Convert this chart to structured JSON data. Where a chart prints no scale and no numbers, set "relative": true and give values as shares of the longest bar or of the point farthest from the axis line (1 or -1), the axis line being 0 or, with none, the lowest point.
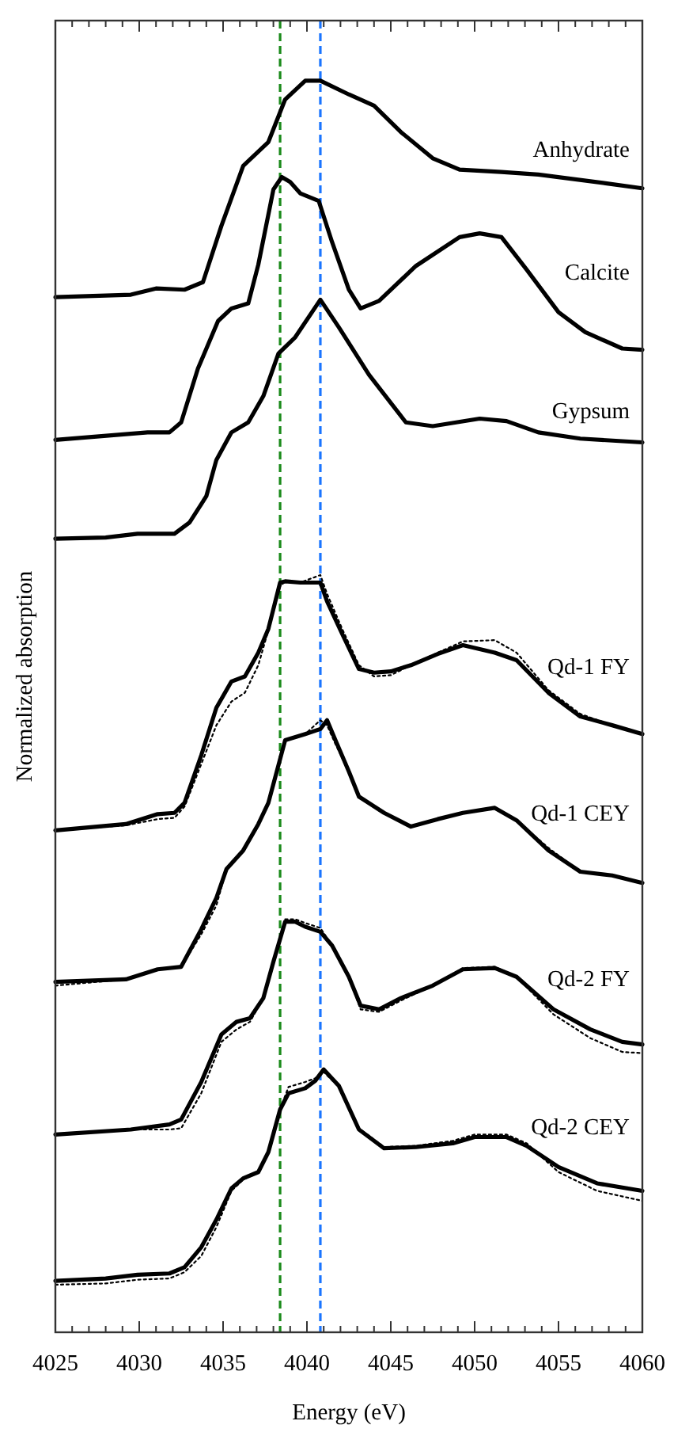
{
  "chart_data": {
    "type": "line",
    "relative": true,
    "xlabel": "Energy (eV)",
    "ylabel": "Normalized absorption",
    "grid": false,
    "xlim": [
      4025,
      4060
    ],
    "xticks": [
      4025,
      {
        "value": 4026,
        "label": null
      },
      {
        "value": 4027,
        "label": null
      },
      {
        "value": 4028,
        "label": null
      },
      {
        "value": 4029,
        "label": null
      },
      4030,
      {
        "value": 4031,
        "label": null
      },
      {
        "value": 4032,
        "label": null
      },
      {
        "value": 4033,
        "label": null
      },
      {
        "value": 4034,
        "label": null
      },
      4035,
      {
        "value": 4036,
        "label": null
      },
      {
        "value": 4037,
        "label": null
      },
      {
        "value": 4038,
        "label": null
      },
      {
        "value": 4039,
        "label": null
      },
      4040,
      {
        "value": 4041,
        "label": null
      },
      {
        "value": 4042,
        "label": null
      },
      {
        "value": 4043,
        "label": null
      },
      {
        "value": 4044,
        "label": null
      },
      4045,
      {
        "value": 4046,
        "label": null
      },
      {
        "value": 4047,
        "label": null
      },
      {
        "value": 4048,
        "label": null
      },
      {
        "value": 4049,
        "label": null
      },
      4050,
      {
        "value": 4051,
        "label": null
      },
      {
        "value": 4052,
        "label": null
      },
      {
        "value": 4053,
        "label": null
      },
      {
        "value": 4054,
        "label": null
      },
      4055,
      {
        "value": 4056,
        "label": null
      },
      {
        "value": 4057,
        "label": null
      },
      {
        "value": 4058,
        "label": null
      },
      {
        "value": 4059,
        "label": null
      },
      4060
    ],
    "ref_lines": [
      {
        "axis": "x",
        "value": 4038.4,
        "color": "#1a8a1a",
        "line_style": "dashed"
      },
      {
        "axis": "x",
        "value": 4040.8,
        "color": "#1a75ff",
        "line_style": "dashed"
      }
    ],
    "series": [
      {
        "name": "Anhydrate",
        "color": "#000000",
        "line_style": "solid",
        "x": [
          4025,
          4029.5,
          4031,
          4032.7,
          4033.8,
          4034.9,
          4036.2,
          4037.7,
          4038.7,
          4039.9,
          4040.8,
          4042.5,
          4044.0,
          4045.6,
          4047.5,
          4049.1,
          4051.6,
          4053.8,
          4057.8,
          4060
        ],
        "values": [
          0.827,
          0.829,
          0.834,
          0.833,
          0.839,
          0.884,
          0.932,
          0.951,
          0.985,
          1,
          1,
          0.989,
          0.98,
          0.959,
          0.938,
          0.929,
          0.927,
          0.925,
          0.918,
          0.914
        ]
      },
      {
        "name": "Calcite",
        "color": "#000000",
        "line_style": "solid",
        "x": [
          4025,
          4030.5,
          4031.8,
          4032.5,
          4033.5,
          4034.7,
          4035.5,
          4036.5,
          4037.1,
          4038.0,
          4038.5,
          4039.0,
          4039.6,
          4040.7,
          4041.5,
          4042.5,
          4043.2,
          4044.3,
          4046.5,
          4049.1,
          4050.3,
          4051.6,
          4053.1,
          4055.0,
          4056.6,
          4058.8,
          4060
        ],
        "values": [
          0.713,
          0.719,
          0.719,
          0.727,
          0.77,
          0.808,
          0.818,
          0.822,
          0.853,
          0.913,
          0.923,
          0.919,
          0.91,
          0.904,
          0.871,
          0.833,
          0.818,
          0.824,
          0.852,
          0.875,
          0.878,
          0.875,
          0.849,
          0.815,
          0.799,
          0.786,
          0.785
        ]
      },
      {
        "name": "Gypsum",
        "color": "#000000",
        "line_style": "solid",
        "x": [
          4025,
          4028,
          4029.9,
          4032.1,
          4033,
          4034,
          4034.6,
          4035.5,
          4036.5,
          4037.4,
          4038.3,
          4039.3,
          4040.8,
          4041.9,
          4043.7,
          4045.9,
          4047.5,
          4050.3,
          4051.9,
          4053.8,
          4056.3,
          4060
        ],
        "values": [
          0.634,
          0.635,
          0.638,
          0.638,
          0.647,
          0.668,
          0.697,
          0.719,
          0.727,
          0.748,
          0.782,
          0.795,
          0.825,
          0.803,
          0.765,
          0.727,
          0.724,
          0.73,
          0.728,
          0.719,
          0.714,
          0.711
        ]
      },
      {
        "name": "Qd-1 FY",
        "color": "#000000",
        "line_style": "solid",
        "x": [
          4025,
          4029.2,
          4031.1,
          4032.1,
          4032.7,
          4033.7,
          4034.6,
          4035.5,
          4036.3,
          4037.1,
          4037.7,
          4038.4,
          4038.7,
          4039.6,
          4040.8,
          4041.2,
          4042.1,
          4043.1,
          4044.0,
          4045.0,
          4046.2,
          4047.8,
          4049.3,
          4051.2,
          4052.5,
          4054.4,
          4056.3,
          4058.2,
          4060
        ],
        "values": [
          0.401,
          0.406,
          0.414,
          0.415,
          0.423,
          0.461,
          0.499,
          0.52,
          0.524,
          0.543,
          0.562,
          0.599,
          0.6,
          0.599,
          0.599,
          0.584,
          0.558,
          0.53,
          0.527,
          0.528,
          0.533,
          0.542,
          0.549,
          0.543,
          0.537,
          0.511,
          0.492,
          0.485,
          0.478
        ]
      },
      {
        "color": "#000000",
        "line_style": "dotted",
        "x": [
          4025,
          4029.2,
          4031.1,
          4032.1,
          4032.7,
          4033.7,
          4034.6,
          4035.5,
          4036.3,
          4037.1,
          4037.7,
          4038.4,
          4038.7,
          4039.6,
          4040.8,
          4041.2,
          4042.1,
          4043.1,
          4044.0,
          4045.0,
          4046.2,
          4047.8,
          4049.3,
          4051.2,
          4052.5,
          4054.4,
          4056.3,
          4058.2,
          4060
        ],
        "values": [
          0.401,
          0.405,
          0.41,
          0.411,
          0.42,
          0.454,
          0.485,
          0.504,
          0.511,
          0.533,
          0.561,
          0.596,
          0.6,
          0.599,
          0.605,
          0.59,
          0.562,
          0.533,
          0.524,
          0.525,
          0.533,
          0.543,
          0.552,
          0.553,
          0.543,
          0.513,
          0.494,
          0.485,
          0.478
        ]
      },
      {
        "name": "Qd-1 CEY",
        "color": "#000000",
        "line_style": "solid",
        "x": [
          4025,
          4029.2,
          4031.1,
          4032.5,
          4033.7,
          4034.6,
          4035.2,
          4036.2,
          4037.1,
          4037.7,
          4038.2,
          4038.7,
          4039.9,
          4040.8,
          4041.2,
          4041.7,
          4042.5,
          4043.1,
          4044.6,
          4046.2,
          4047.8,
          4049.3,
          4051.2,
          4052.5,
          4054.4,
          4056.3,
          4058.2,
          4060
        ],
        "values": [
          0.28,
          0.282,
          0.29,
          0.292,
          0.322,
          0.347,
          0.37,
          0.385,
          0.406,
          0.423,
          0.448,
          0.473,
          0.478,
          0.482,
          0.489,
          0.473,
          0.448,
          0.428,
          0.415,
          0.404,
          0.41,
          0.415,
          0.419,
          0.409,
          0.385,
          0.368,
          0.365,
          0.359
        ]
      },
      {
        "color": "#000000",
        "line_style": "dotted",
        "x": [
          4025,
          4029.2,
          4031.1,
          4032.5,
          4033.7,
          4034.6,
          4035.2,
          4036.2,
          4037.1,
          4037.7,
          4038.2,
          4038.7,
          4039.9,
          4040.8,
          4041.2,
          4041.7,
          4042.5,
          4043.1,
          4044.6,
          4046.2,
          4047.8,
          4049.3,
          4051.2,
          4052.5,
          4054.4,
          4056.3,
          4058.2,
          4060
        ],
        "values": [
          0.277,
          0.282,
          0.29,
          0.292,
          0.318,
          0.341,
          0.37,
          0.385,
          0.406,
          0.423,
          0.448,
          0.473,
          0.478,
          0.489,
          0.485,
          0.47,
          0.448,
          0.428,
          0.415,
          0.404,
          0.41,
          0.415,
          0.419,
          0.409,
          0.387,
          0.368,
          0.365,
          0.359
        ]
      },
      {
        "name": "Qd-2 FY",
        "color": "#000000",
        "line_style": "solid",
        "x": [
          4025,
          4029.5,
          4031.8,
          4032.5,
          4033.7,
          4034.9,
          4035.8,
          4036.6,
          4037.4,
          4038.0,
          4038.7,
          4039.3,
          4039.9,
          4040.8,
          4041.5,
          4042.5,
          4043.2,
          4044.3,
          4045.6,
          4047.5,
          4049.3,
          4051.2,
          4052.5,
          4054.7,
          4056.9,
          4058.8,
          4060
        ],
        "values": [
          0.158,
          0.162,
          0.166,
          0.17,
          0.2,
          0.238,
          0.248,
          0.251,
          0.267,
          0.296,
          0.328,
          0.328,
          0.324,
          0.32,
          0.309,
          0.284,
          0.261,
          0.258,
          0.267,
          0.277,
          0.29,
          0.291,
          0.284,
          0.258,
          0.242,
          0.232,
          0.23
        ]
      },
      {
        "color": "#000000",
        "line_style": "dotted",
        "x": [
          4025,
          4029.5,
          4031.8,
          4032.5,
          4033.7,
          4034.9,
          4035.8,
          4036.6,
          4037.4,
          4038.0,
          4038.7,
          4039.3,
          4039.9,
          4040.8,
          4041.5,
          4042.5,
          4043.2,
          4044.3,
          4045.6,
          4047.5,
          4049.3,
          4051.2,
          4052.5,
          4054.7,
          4056.9,
          4058.8,
          4060
        ],
        "values": [
          0.158,
          0.162,
          0.162,
          0.163,
          0.191,
          0.232,
          0.242,
          0.248,
          0.267,
          0.296,
          0.33,
          0.33,
          0.327,
          0.323,
          0.309,
          0.284,
          0.258,
          0.256,
          0.265,
          0.277,
          0.291,
          0.292,
          0.284,
          0.254,
          0.235,
          0.224,
          0.223
        ]
      },
      {
        "name": "Qd-2 CEY",
        "color": "#000000",
        "line_style": "solid",
        "x": [
          4025,
          4028,
          4029.9,
          4031.8,
          4032.7,
          4033.7,
          4034.6,
          4035.5,
          4036.2,
          4037.1,
          4037.7,
          4038.4,
          4038.9,
          4039.9,
          4040.5,
          4041.0,
          4041.9,
          4043.1,
          4044.6,
          4046.5,
          4048.7,
          4050.0,
          4051.9,
          4053.1,
          4055.0,
          4057.3,
          4060
        ],
        "values": [
          0.041,
          0.043,
          0.046,
          0.047,
          0.052,
          0.068,
          0.09,
          0.115,
          0.123,
          0.128,
          0.144,
          0.178,
          0.191,
          0.195,
          0.201,
          0.21,
          0.197,
          0.162,
          0.147,
          0.148,
          0.151,
          0.156,
          0.156,
          0.149,
          0.132,
          0.119,
          0.113
        ]
      },
      {
        "color": "#000000",
        "line_style": "dotted",
        "x": [
          4025,
          4028,
          4029.9,
          4031.8,
          4032.7,
          4033.7,
          4034.6,
          4035.5,
          4036.2,
          4037.1,
          4037.7,
          4038.4,
          4038.9,
          4039.9,
          4040.5,
          4041.0,
          4041.9,
          4043.1,
          4044.6,
          4046.5,
          4048.7,
          4050.0,
          4051.9,
          4053.1,
          4055.0,
          4057.3,
          4060
        ],
        "values": [
          0.038,
          0.039,
          0.042,
          0.043,
          0.048,
          0.061,
          0.084,
          0.113,
          0.122,
          0.128,
          0.144,
          0.178,
          0.196,
          0.2,
          0.203,
          0.208,
          0.196,
          0.163,
          0.148,
          0.149,
          0.153,
          0.158,
          0.158,
          0.151,
          0.128,
          0.113,
          0.105
        ]
      }
    ]
  }
}
